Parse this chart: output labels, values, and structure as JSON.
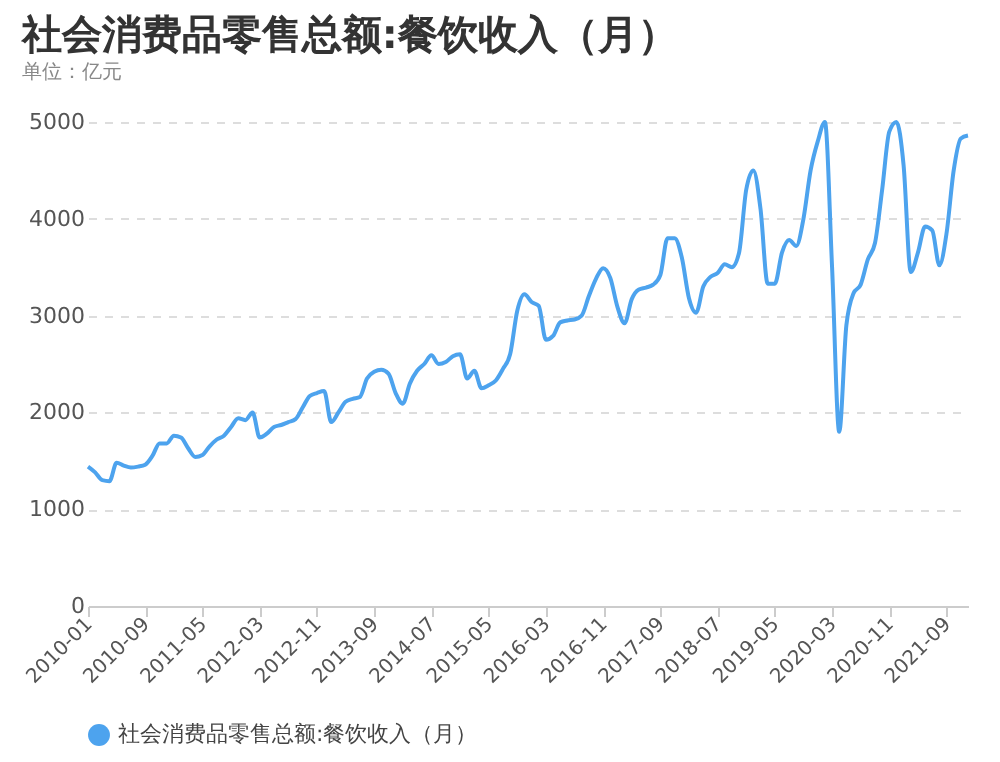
{
  "chart_data": {
    "type": "line",
    "title": "社会消费品零售总额:餐饮收入（月）",
    "subtitle": "单位：亿元",
    "categories": [
      "2010-01",
      null,
      null,
      null,
      null,
      null,
      null,
      null,
      "2010-09",
      null,
      null,
      null,
      null,
      null,
      null,
      null,
      "2011-05",
      null,
      null,
      null,
      null,
      null,
      null,
      null,
      "2012-03",
      null,
      null,
      null,
      null,
      null,
      null,
      null,
      "2012-11",
      null,
      null,
      null,
      null,
      null,
      null,
      null,
      "2013-09",
      null,
      null,
      null,
      null,
      null,
      null,
      null,
      "2014-07",
      null,
      null,
      null,
      null,
      null,
      null,
      null,
      "2015-05",
      null,
      null,
      null,
      null,
      null,
      null,
      null,
      "2016-03",
      null,
      null,
      null,
      null,
      null,
      null,
      null,
      "2016-11",
      null,
      null,
      null,
      null,
      null,
      null,
      null,
      "2017-09",
      null,
      null,
      null,
      null,
      null,
      null,
      null,
      "2018-07",
      null,
      null,
      null,
      null,
      null,
      null,
      null,
      "2019-05",
      null,
      null,
      null,
      null,
      null,
      null,
      null,
      "2020-03",
      null,
      null,
      null,
      null,
      null,
      null,
      null,
      "2020-11",
      null,
      null,
      null,
      null,
      null,
      null,
      null,
      "2021-09",
      null,
      null,
      null
    ],
    "series": [
      {
        "name": "社会消费品零售总额:餐饮收入（月）",
        "color": "#4da3ee",
        "values": [
          1440,
          1380,
          1300,
          1290,
          1480,
          1450,
          1430,
          1440,
          1460,
          1550,
          1680,
          1680,
          1760,
          1740,
          1630,
          1540,
          1560,
          1650,
          1720,
          1760,
          1850,
          1940,
          1920,
          2000,
          1740,
          1780,
          1850,
          1870,
          1900,
          1930,
          2050,
          2170,
          2200,
          2220,
          1900,
          2000,
          2110,
          2140,
          2160,
          2350,
          2420,
          2440,
          2400,
          2200,
          2090,
          2300,
          2430,
          2500,
          2590,
          2500,
          2520,
          2580,
          2600,
          2350,
          2430,
          2250,
          2280,
          2330,
          2450,
          2600,
          3050,
          3220,
          3140,
          3100,
          2750,
          2790,
          2930,
          2950,
          2960,
          3000,
          3200,
          3380,
          3490,
          3390,
          3090,
          2920,
          3170,
          3270,
          3290,
          3320,
          3420,
          3800,
          3800,
          3600,
          3180,
          3030,
          3300,
          3400,
          3440,
          3530,
          3500,
          3650,
          4300,
          4500,
          4100,
          3330,
          3330,
          3650,
          3780,
          3720,
          4000,
          4500,
          4800,
          5000,
          3500,
          1800,
          2900,
          3230,
          3320,
          3580,
          3750,
          4300,
          4900,
          5000,
          4550,
          3450,
          3650,
          3920,
          3880,
          3520,
          3850,
          4500,
          4830,
          4860
        ]
      }
    ],
    "ylim": [
      0,
      5000
    ],
    "yticks": [
      0,
      1000,
      2000,
      3000,
      4000,
      5000
    ],
    "grid": "y",
    "legend": "bottom",
    "marker": "none",
    "line_style": "solid"
  }
}
